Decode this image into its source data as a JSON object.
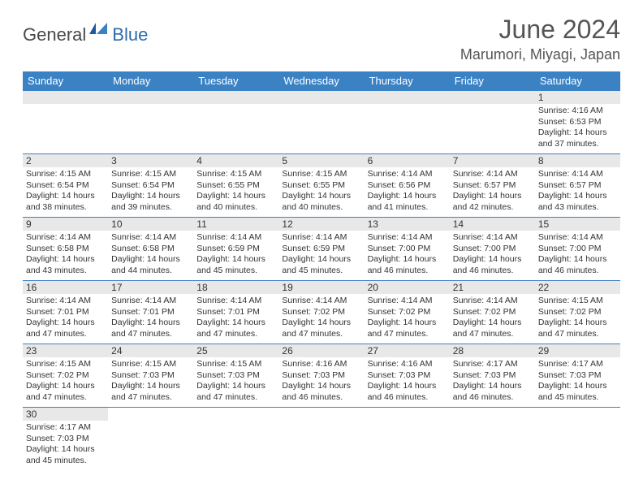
{
  "logo": {
    "part1": "General",
    "part2": "Blue"
  },
  "title": "June 2024",
  "location": "Marumori, Miyagi, Japan",
  "colors": {
    "header_bg": "#3b82c4",
    "header_text": "#ffffff",
    "daynum_bg": "#e8e8e8",
    "border": "#3b82c4",
    "logo_gray": "#4a4a4a",
    "logo_blue": "#2b6cb0"
  },
  "weekdays": [
    "Sunday",
    "Monday",
    "Tuesday",
    "Wednesday",
    "Thursday",
    "Friday",
    "Saturday"
  ],
  "weeks": [
    [
      null,
      null,
      null,
      null,
      null,
      null,
      {
        "d": "1",
        "sr": "4:16 AM",
        "ss": "6:53 PM",
        "dl": "14 hours and 37 minutes."
      }
    ],
    [
      {
        "d": "2",
        "sr": "4:15 AM",
        "ss": "6:54 PM",
        "dl": "14 hours and 38 minutes."
      },
      {
        "d": "3",
        "sr": "4:15 AM",
        "ss": "6:54 PM",
        "dl": "14 hours and 39 minutes."
      },
      {
        "d": "4",
        "sr": "4:15 AM",
        "ss": "6:55 PM",
        "dl": "14 hours and 40 minutes."
      },
      {
        "d": "5",
        "sr": "4:15 AM",
        "ss": "6:55 PM",
        "dl": "14 hours and 40 minutes."
      },
      {
        "d": "6",
        "sr": "4:14 AM",
        "ss": "6:56 PM",
        "dl": "14 hours and 41 minutes."
      },
      {
        "d": "7",
        "sr": "4:14 AM",
        "ss": "6:57 PM",
        "dl": "14 hours and 42 minutes."
      },
      {
        "d": "8",
        "sr": "4:14 AM",
        "ss": "6:57 PM",
        "dl": "14 hours and 43 minutes."
      }
    ],
    [
      {
        "d": "9",
        "sr": "4:14 AM",
        "ss": "6:58 PM",
        "dl": "14 hours and 43 minutes."
      },
      {
        "d": "10",
        "sr": "4:14 AM",
        "ss": "6:58 PM",
        "dl": "14 hours and 44 minutes."
      },
      {
        "d": "11",
        "sr": "4:14 AM",
        "ss": "6:59 PM",
        "dl": "14 hours and 45 minutes."
      },
      {
        "d": "12",
        "sr": "4:14 AM",
        "ss": "6:59 PM",
        "dl": "14 hours and 45 minutes."
      },
      {
        "d": "13",
        "sr": "4:14 AM",
        "ss": "7:00 PM",
        "dl": "14 hours and 46 minutes."
      },
      {
        "d": "14",
        "sr": "4:14 AM",
        "ss": "7:00 PM",
        "dl": "14 hours and 46 minutes."
      },
      {
        "d": "15",
        "sr": "4:14 AM",
        "ss": "7:00 PM",
        "dl": "14 hours and 46 minutes."
      }
    ],
    [
      {
        "d": "16",
        "sr": "4:14 AM",
        "ss": "7:01 PM",
        "dl": "14 hours and 47 minutes."
      },
      {
        "d": "17",
        "sr": "4:14 AM",
        "ss": "7:01 PM",
        "dl": "14 hours and 47 minutes."
      },
      {
        "d": "18",
        "sr": "4:14 AM",
        "ss": "7:01 PM",
        "dl": "14 hours and 47 minutes."
      },
      {
        "d": "19",
        "sr": "4:14 AM",
        "ss": "7:02 PM",
        "dl": "14 hours and 47 minutes."
      },
      {
        "d": "20",
        "sr": "4:14 AM",
        "ss": "7:02 PM",
        "dl": "14 hours and 47 minutes."
      },
      {
        "d": "21",
        "sr": "4:14 AM",
        "ss": "7:02 PM",
        "dl": "14 hours and 47 minutes."
      },
      {
        "d": "22",
        "sr": "4:15 AM",
        "ss": "7:02 PM",
        "dl": "14 hours and 47 minutes."
      }
    ],
    [
      {
        "d": "23",
        "sr": "4:15 AM",
        "ss": "7:02 PM",
        "dl": "14 hours and 47 minutes."
      },
      {
        "d": "24",
        "sr": "4:15 AM",
        "ss": "7:03 PM",
        "dl": "14 hours and 47 minutes."
      },
      {
        "d": "25",
        "sr": "4:15 AM",
        "ss": "7:03 PM",
        "dl": "14 hours and 47 minutes."
      },
      {
        "d": "26",
        "sr": "4:16 AM",
        "ss": "7:03 PM",
        "dl": "14 hours and 46 minutes."
      },
      {
        "d": "27",
        "sr": "4:16 AM",
        "ss": "7:03 PM",
        "dl": "14 hours and 46 minutes."
      },
      {
        "d": "28",
        "sr": "4:17 AM",
        "ss": "7:03 PM",
        "dl": "14 hours and 46 minutes."
      },
      {
        "d": "29",
        "sr": "4:17 AM",
        "ss": "7:03 PM",
        "dl": "14 hours and 45 minutes."
      }
    ],
    [
      {
        "d": "30",
        "sr": "4:17 AM",
        "ss": "7:03 PM",
        "dl": "14 hours and 45 minutes."
      },
      null,
      null,
      null,
      null,
      null,
      null
    ]
  ],
  "labels": {
    "sunrise": "Sunrise:",
    "sunset": "Sunset:",
    "daylight": "Daylight:"
  }
}
